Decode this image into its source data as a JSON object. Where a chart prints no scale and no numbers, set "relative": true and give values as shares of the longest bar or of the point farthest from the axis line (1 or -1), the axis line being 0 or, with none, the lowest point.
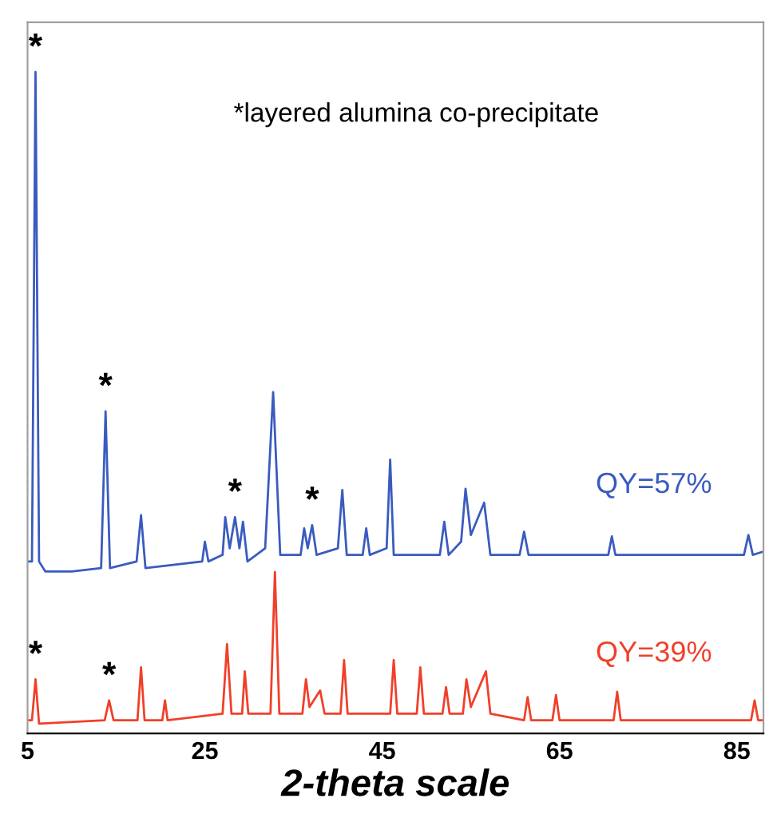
{
  "chart_data": {
    "type": "line",
    "relative": true,
    "xlabel": "2-theta scale",
    "xlim": [
      5,
      88
    ],
    "xticks": [
      5,
      25,
      45,
      65,
      85
    ],
    "tick_labels": "x",
    "grid": false,
    "legend": false,
    "marker": "none",
    "line_style": "solid",
    "annotations": [
      "*layered alumina co-precipitate",
      {
        "text": "*",
        "x": 5.9,
        "y": 1.0
      },
      {
        "text": "*",
        "x": 13.8,
        "y": 0.487
      },
      {
        "text": "*",
        "x": 28.4,
        "y": 0.327
      },
      {
        "text": "*",
        "x": 37.1,
        "y": 0.315
      },
      {
        "text": "*",
        "x": 5.9,
        "y": 0.082
      },
      {
        "text": "*",
        "x": 14.2,
        "y": 0.05
      }
    ],
    "series": [
      {
        "name": "QY=57%",
        "color": "#3a5bbf",
        "x": [
          5.0,
          5.5,
          5.9,
          6.3,
          7,
          10,
          13.3,
          13.8,
          14.3,
          17.3,
          17.8,
          18.3,
          24.7,
          25,
          25.4,
          27,
          27.3,
          27.8,
          28.4,
          28.9,
          29.3,
          29.8,
          31.8,
          32.7,
          33.5,
          35.8,
          36.2,
          36.6,
          37.1,
          37.6,
          40,
          40.5,
          41,
          42.8,
          43.2,
          43.6,
          45.5,
          45.9,
          46.3,
          51.5,
          52,
          52.5,
          53.9,
          54.4,
          55,
          56.5,
          57.2,
          60.5,
          61,
          61.5,
          70.5,
          70.9,
          71.3,
          85.8,
          86.3,
          86.8,
          88
        ],
        "values": [
          0.26,
          0.26,
          1.0,
          0.26,
          0.245,
          0.245,
          0.25,
          0.487,
          0.25,
          0.26,
          0.33,
          0.25,
          0.26,
          0.29,
          0.26,
          0.27,
          0.327,
          0.28,
          0.327,
          0.28,
          0.32,
          0.26,
          0.28,
          0.516,
          0.27,
          0.27,
          0.31,
          0.28,
          0.315,
          0.27,
          0.28,
          0.368,
          0.27,
          0.27,
          0.31,
          0.27,
          0.28,
          0.414,
          0.27,
          0.27,
          0.32,
          0.27,
          0.29,
          0.37,
          0.3,
          0.349,
          0.27,
          0.27,
          0.305,
          0.27,
          0.27,
          0.298,
          0.27,
          0.27,
          0.3,
          0.27,
          0.275
        ]
      },
      {
        "name": "QY=39%",
        "color": "#f0402a",
        "x": [
          5,
          5.5,
          5.9,
          6.3,
          13.7,
          14.2,
          14.7,
          17.4,
          17.8,
          18.2,
          20.2,
          20.5,
          20.8,
          27,
          27.5,
          28,
          29.2,
          29.5,
          29.9,
          32.4,
          32.9,
          33.4,
          36,
          36.4,
          36.8,
          38,
          38.5,
          40.3,
          40.7,
          41.1,
          45.9,
          46.3,
          46.7,
          48.9,
          49.3,
          49.7,
          51.8,
          52.2,
          52.6,
          54.1,
          54.5,
          55,
          56.7,
          57.2,
          61,
          61.4,
          61.8,
          64.2,
          64.6,
          65,
          71.1,
          71.5,
          71.9,
          86.6,
          87,
          87.4,
          88
        ],
        "values": [
          0.02,
          0.02,
          0.082,
          0.015,
          0.02,
          0.05,
          0.02,
          0.02,
          0.1,
          0.02,
          0.02,
          0.05,
          0.02,
          0.03,
          0.135,
          0.03,
          0.03,
          0.094,
          0.03,
          0.03,
          0.244,
          0.03,
          0.03,
          0.082,
          0.04,
          0.065,
          0.03,
          0.03,
          0.111,
          0.03,
          0.03,
          0.111,
          0.03,
          0.03,
          0.1,
          0.03,
          0.03,
          0.07,
          0.03,
          0.03,
          0.082,
          0.04,
          0.094,
          0.03,
          0.02,
          0.055,
          0.02,
          0.02,
          0.058,
          0.02,
          0.02,
          0.063,
          0.02,
          0.02,
          0.05,
          0.02,
          0.02
        ]
      }
    ]
  }
}
